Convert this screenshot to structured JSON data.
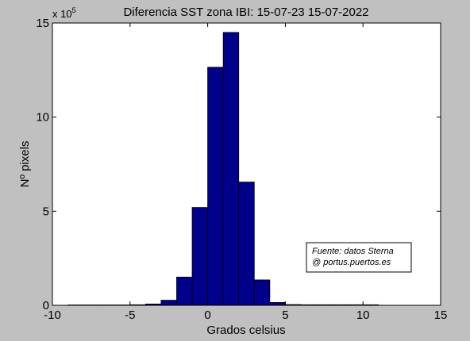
{
  "chart_data": {
    "type": "bar",
    "title": "Diferencia SST zona IBI: 15-07-23 15-07-2022",
    "xlabel": "Grados celsius",
    "ylabel": "Nº pixels",
    "y_multiplier_base": "x 10",
    "y_multiplier_exponent": "5",
    "xlim": [
      -10,
      15
    ],
    "ylim": [
      0,
      15
    ],
    "xticks": [
      "-10",
      "-5",
      "0",
      "5",
      "10",
      "15"
    ],
    "yticks": [
      "0",
      "5",
      "10",
      "15"
    ],
    "bar_color": "#00008b",
    "bin_width": 1,
    "bin_starts": [
      -9,
      -8,
      -7,
      -6,
      -5,
      -4,
      -3,
      -2,
      -1,
      0,
      1,
      2,
      3,
      4,
      5,
      6,
      7,
      8,
      9,
      10
    ],
    "values": [
      0.02,
      0.02,
      0.02,
      0.02,
      0.03,
      0.07,
      0.27,
      1.5,
      5.2,
      12.65,
      14.5,
      6.55,
      1.35,
      0.15,
      0.04,
      0.03,
      0.03,
      0.03,
      0.03,
      0.03
    ],
    "annotation": {
      "line1": "Fuente: datos Sterna",
      "line2": "@ portus.puertos.es"
    }
  }
}
